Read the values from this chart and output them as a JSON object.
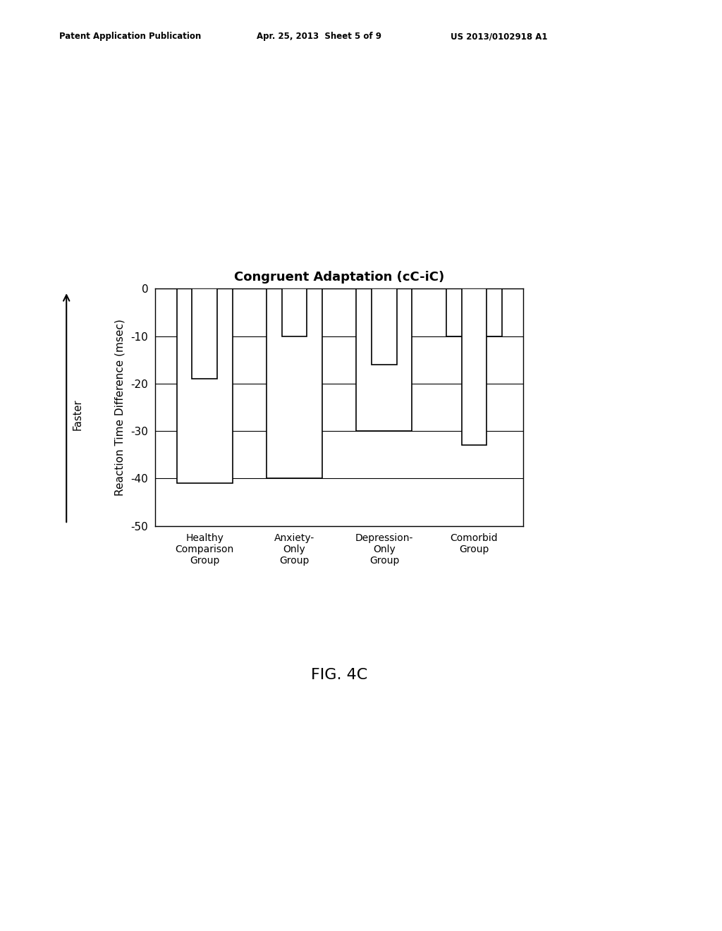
{
  "title": "Congruent Adaptation (cC-iC)",
  "ylabel": "Reaction Time Difference (msec)",
  "faster_label": "Faster",
  "fig_label": "FIG. 4C",
  "patent_left": "Patent Application Publication",
  "patent_mid": "Apr. 25, 2013  Sheet 5 of 9",
  "patent_right": "US 2013/0102918 A1",
  "ylim": [
    -50,
    0
  ],
  "yticks": [
    0,
    -10,
    -20,
    -30,
    -40,
    -50
  ],
  "categories": [
    "Healthy\nComparison\nGroup",
    "Anxiety-\nOnly\nGroup",
    "Depression-\nOnly\nGroup",
    "Comorbid\nGroup"
  ],
  "bars": [
    {
      "outer": -41,
      "inner": -19
    },
    {
      "outer": -40,
      "inner": -10
    },
    {
      "outer": -30,
      "inner": -16
    },
    {
      "outer": -10,
      "inner": -33
    }
  ],
  "outer_bar_width": 0.62,
  "inner_bar_width": 0.28,
  "background_color": "#ffffff",
  "bar_facecolor": "#ffffff",
  "bar_edgecolor": "#000000",
  "text_color": "#000000",
  "title_fontsize": 13,
  "label_fontsize": 11,
  "tick_fontsize": 11,
  "xtick_fontsize": 10
}
